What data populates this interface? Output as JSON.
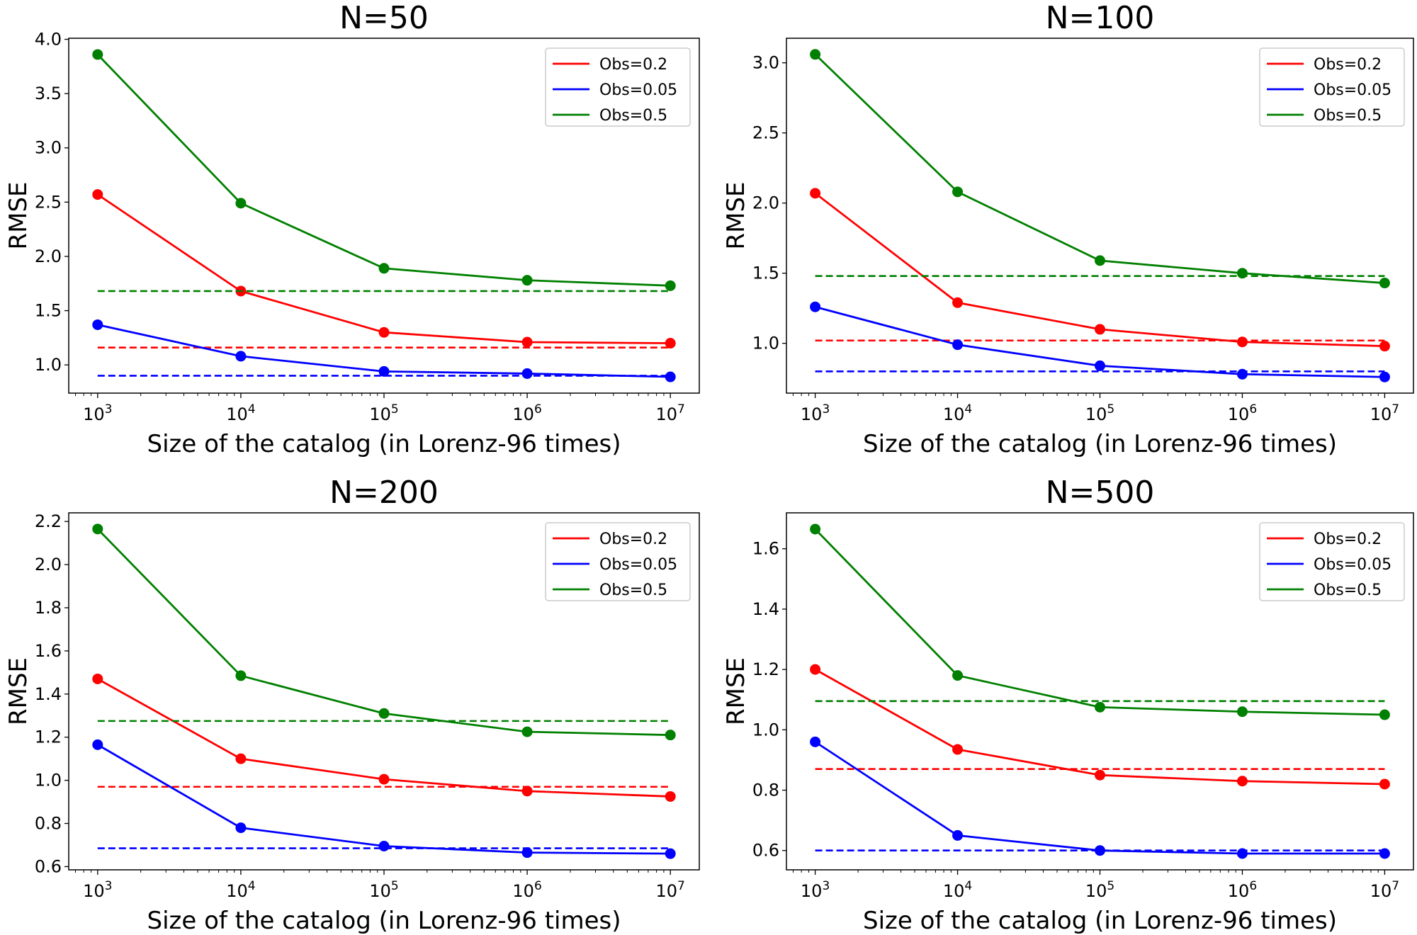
{
  "colors": {
    "Obs=0.2": "#ff0000",
    "Obs=0.05": "#0000ff",
    "Obs=0.5": "#008000"
  },
  "chart_data": [
    {
      "type": "line",
      "title": "N=50",
      "xlabel": "Size of the catalog (in Lorenz-96 times)",
      "ylabel": "RMSE",
      "xscale": "log",
      "x": [
        1000,
        10000,
        100000,
        1000000,
        10000000
      ],
      "xticks": [
        {
          "base": "10",
          "exp": "3"
        },
        {
          "base": "10",
          "exp": "4"
        },
        {
          "base": "10",
          "exp": "5"
        },
        {
          "base": "10",
          "exp": "6"
        },
        {
          "base": "10",
          "exp": "7"
        }
      ],
      "ylim": [
        0.74,
        4.01
      ],
      "yticks": [
        "1.0",
        "1.5",
        "2.0",
        "2.5",
        "3.0",
        "3.5",
        "4.0"
      ],
      "legend": "upper-right",
      "grid": false,
      "series": [
        {
          "name": "Obs=0.2",
          "values": [
            2.57,
            1.68,
            1.3,
            1.21,
            1.2
          ],
          "baseline": 1.16
        },
        {
          "name": "Obs=0.05",
          "values": [
            1.37,
            1.08,
            0.94,
            0.92,
            0.89
          ],
          "baseline": 0.9
        },
        {
          "name": "Obs=0.5",
          "values": [
            3.86,
            2.49,
            1.89,
            1.78,
            1.73
          ],
          "baseline": 1.68
        }
      ]
    },
    {
      "type": "line",
      "title": "N=100",
      "xlabel": "Size of the catalog (in Lorenz-96 times)",
      "ylabel": "RMSE",
      "xscale": "log",
      "x": [
        1000,
        10000,
        100000,
        1000000,
        10000000
      ],
      "xticks": [
        {
          "base": "10",
          "exp": "3"
        },
        {
          "base": "10",
          "exp": "4"
        },
        {
          "base": "10",
          "exp": "5"
        },
        {
          "base": "10",
          "exp": "6"
        },
        {
          "base": "10",
          "exp": "7"
        }
      ],
      "ylim": [
        0.645,
        3.175
      ],
      "yticks": [
        "1.0",
        "1.5",
        "2.0",
        "2.5",
        "3.0"
      ],
      "legend": "upper-right",
      "grid": false,
      "series": [
        {
          "name": "Obs=0.2",
          "values": [
            2.07,
            1.29,
            1.1,
            1.01,
            0.98
          ],
          "baseline": 1.02
        },
        {
          "name": "Obs=0.05",
          "values": [
            1.26,
            0.99,
            0.84,
            0.78,
            0.76
          ],
          "baseline": 0.8
        },
        {
          "name": "Obs=0.5",
          "values": [
            3.06,
            2.08,
            1.59,
            1.5,
            1.43
          ],
          "baseline": 1.48
        }
      ]
    },
    {
      "type": "line",
      "title": "N=200",
      "xlabel": "Size of the catalog (in Lorenz-96 times)",
      "ylabel": "RMSE",
      "xscale": "log",
      "x": [
        1000,
        10000,
        100000,
        1000000,
        10000000
      ],
      "xticks": [
        {
          "base": "10",
          "exp": "3"
        },
        {
          "base": "10",
          "exp": "4"
        },
        {
          "base": "10",
          "exp": "5"
        },
        {
          "base": "10",
          "exp": "6"
        },
        {
          "base": "10",
          "exp": "7"
        }
      ],
      "ylim": [
        0.585,
        2.24
      ],
      "yticks": [
        "0.6",
        "0.8",
        "1.0",
        "1.2",
        "1.4",
        "1.6",
        "1.8",
        "2.0",
        "2.2"
      ],
      "legend": "upper-right",
      "grid": false,
      "series": [
        {
          "name": "Obs=0.2",
          "values": [
            1.47,
            1.1,
            1.005,
            0.95,
            0.925
          ],
          "baseline": 0.97
        },
        {
          "name": "Obs=0.05",
          "values": [
            1.165,
            0.78,
            0.695,
            0.665,
            0.66
          ],
          "baseline": 0.685
        },
        {
          "name": "Obs=0.5",
          "values": [
            2.165,
            1.485,
            1.31,
            1.225,
            1.21
          ],
          "baseline": 1.275
        }
      ]
    },
    {
      "type": "line",
      "title": "N=500",
      "xlabel": "Size of the catalog (in Lorenz-96 times)",
      "ylabel": "RMSE",
      "xscale": "log",
      "x": [
        1000,
        10000,
        100000,
        1000000,
        10000000
      ],
      "xticks": [
        {
          "base": "10",
          "exp": "3"
        },
        {
          "base": "10",
          "exp": "4"
        },
        {
          "base": "10",
          "exp": "5"
        },
        {
          "base": "10",
          "exp": "6"
        },
        {
          "base": "10",
          "exp": "7"
        }
      ],
      "ylim": [
        0.536,
        1.719
      ],
      "yticks": [
        "0.6",
        "0.8",
        "1.0",
        "1.2",
        "1.4",
        "1.6"
      ],
      "legend": "upper-right",
      "grid": false,
      "series": [
        {
          "name": "Obs=0.2",
          "values": [
            1.2,
            0.935,
            0.85,
            0.83,
            0.82
          ],
          "baseline": 0.87
        },
        {
          "name": "Obs=0.05",
          "values": [
            0.96,
            0.65,
            0.6,
            0.59,
            0.59
          ],
          "baseline": 0.6
        },
        {
          "name": "Obs=0.5",
          "values": [
            1.665,
            1.18,
            1.075,
            1.06,
            1.05
          ],
          "baseline": 1.095
        }
      ]
    }
  ]
}
